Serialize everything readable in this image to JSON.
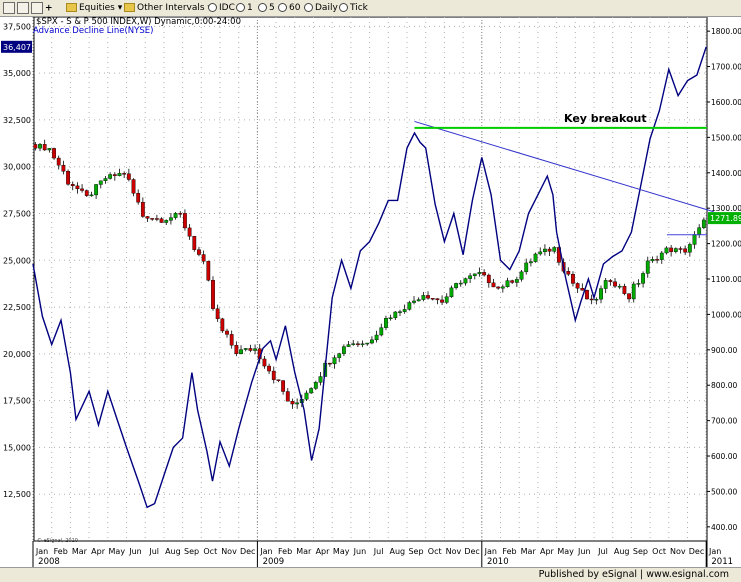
{
  "toolbar": {
    "symbol_label": "$SPX",
    "equities_label": "Equities",
    "other_intervals_label": "Other Intervals",
    "idc_label": "IDC",
    "intervals": [
      "1",
      "5",
      "60",
      "Daily",
      "Tick"
    ]
  },
  "footer": {
    "published": "Published by eSignal | www.esignal.com"
  },
  "watermark": "© eSignal, 2010",
  "colors": {
    "up_candle": "#00aa00",
    "down_candle": "#cc0000",
    "ad_line": "#000080",
    "breakout": "#00cc00",
    "trendline": "#3333cc",
    "price_tag": "#00b000"
  },
  "chart_data": {
    "type": "candlestick+line",
    "title": "$SPX - S & P 500 INDEX,W) Dynamic,0:00-24:00",
    "subtitle": "Advance Decline Line(NYSE)",
    "annotation": "Key breakout",
    "current_price_label": "1271.89",
    "ad_current_label": "36,407",
    "x_tick_labels": [
      "Jan",
      "Feb",
      "Mar",
      "Apr",
      "May",
      "Jun",
      "Jul",
      "Aug",
      "Sep",
      "Oct",
      "Nov",
      "Dec",
      "Jan",
      "Feb",
      "Mar",
      "Apr",
      "May",
      "Jun",
      "Jul",
      "Aug",
      "Sep",
      "Oct",
      "Nov",
      "Dec",
      "Jan",
      "Feb",
      "Mar",
      "Apr",
      "May",
      "Jun",
      "Jul",
      "Aug",
      "Sep",
      "Oct",
      "Nov",
      "Dec",
      "Jan"
    ],
    "year_labels": [
      {
        "label": "2008",
        "month_index": 0
      },
      {
        "label": "2009",
        "month_index": 12
      },
      {
        "label": "2010",
        "month_index": 24
      },
      {
        "label": "2011",
        "month_index": 36
      }
    ],
    "left_axis": {
      "label": "Advance Decline Line",
      "min": 10000,
      "max": 38000,
      "ticks": [
        12500,
        15000,
        17500,
        20000,
        22500,
        25000,
        27500,
        30000,
        32500,
        35000,
        37500
      ],
      "tick_labels": [
        "12,500",
        "15,000",
        "17,500",
        "20,000",
        "22,500",
        "25,000",
        "27,500",
        "30,000",
        "32,500",
        "35,000",
        "37,500"
      ]
    },
    "right_axis": {
      "label": "S&P 500",
      "min": 360,
      "max": 1840,
      "ticks": [
        400,
        500,
        600,
        700,
        800,
        900,
        1000,
        1100,
        1200,
        1300,
        1400,
        1500,
        1600,
        1700,
        1800
      ],
      "tick_labels": [
        "400.00",
        "500.00",
        "600.00",
        "700.00",
        "800.00",
        "900.00",
        "1000.00",
        "1100.00",
        "1200.00",
        "1300.00",
        "1400.00",
        "1500.00",
        "1600.00",
        "1700.00",
        "1800.00"
      ]
    },
    "spx_monthly_closes": [
      1468,
      1378,
      1330,
      1385,
      1400,
      1280,
      1267,
      1282,
      1166,
      969,
      896,
      903,
      826,
      735,
      798,
      873,
      919,
      919,
      987,
      1021,
      1057,
      1036,
      1096,
      1115,
      1074,
      1104,
      1169,
      1187,
      1089,
      1031,
      1102,
      1049,
      1141,
      1183,
      1180,
      1257,
      1272
    ],
    "ad_line_points": [
      {
        "m": 0,
        "v": 24800
      },
      {
        "m": 0.5,
        "v": 22000
      },
      {
        "m": 1,
        "v": 20500
      },
      {
        "m": 1.5,
        "v": 21800
      },
      {
        "m": 2,
        "v": 19000
      },
      {
        "m": 2.3,
        "v": 16500
      },
      {
        "m": 3,
        "v": 18000
      },
      {
        "m": 3.5,
        "v": 16200
      },
      {
        "m": 4,
        "v": 18000
      },
      {
        "m": 4.5,
        "v": 16500
      },
      {
        "m": 5,
        "v": 15000
      },
      {
        "m": 5.7,
        "v": 13000
      },
      {
        "m": 6.1,
        "v": 11800
      },
      {
        "m": 6.5,
        "v": 12000
      },
      {
        "m": 7,
        "v": 13500
      },
      {
        "m": 7.5,
        "v": 15000
      },
      {
        "m": 8,
        "v": 15500
      },
      {
        "m": 8.5,
        "v": 19000
      },
      {
        "m": 8.8,
        "v": 17000
      },
      {
        "m": 9.3,
        "v": 14800
      },
      {
        "m": 9.6,
        "v": 13200
      },
      {
        "m": 10,
        "v": 15300
      },
      {
        "m": 10.5,
        "v": 14000
      },
      {
        "m": 11,
        "v": 16000
      },
      {
        "m": 11.7,
        "v": 18500
      },
      {
        "m": 12.3,
        "v": 20300
      },
      {
        "m": 12.7,
        "v": 20700
      },
      {
        "m": 13,
        "v": 19700
      },
      {
        "m": 13.5,
        "v": 21500
      },
      {
        "m": 14,
        "v": 19000
      },
      {
        "m": 14.5,
        "v": 17000
      },
      {
        "m": 14.9,
        "v": 14300
      },
      {
        "m": 15.3,
        "v": 16000
      },
      {
        "m": 15.7,
        "v": 20000
      },
      {
        "m": 16,
        "v": 23000
      },
      {
        "m": 16.5,
        "v": 25000
      },
      {
        "m": 17,
        "v": 23500
      },
      {
        "m": 17.5,
        "v": 25500
      },
      {
        "m": 18,
        "v": 26000
      },
      {
        "m": 18.5,
        "v": 27000
      },
      {
        "m": 19,
        "v": 28200
      },
      {
        "m": 19.5,
        "v": 28200
      },
      {
        "m": 20,
        "v": 31000
      },
      {
        "m": 20.4,
        "v": 31800
      },
      {
        "m": 20.7,
        "v": 31300
      },
      {
        "m": 21,
        "v": 31000
      },
      {
        "m": 21.5,
        "v": 28000
      },
      {
        "m": 22,
        "v": 26000
      },
      {
        "m": 22.5,
        "v": 27500
      },
      {
        "m": 23,
        "v": 25300
      },
      {
        "m": 23.5,
        "v": 28200
      },
      {
        "m": 24,
        "v": 30500
      },
      {
        "m": 24.5,
        "v": 28500
      },
      {
        "m": 25,
        "v": 25000
      },
      {
        "m": 25.5,
        "v": 24500
      },
      {
        "m": 26,
        "v": 25500
      },
      {
        "m": 26.5,
        "v": 27500
      },
      {
        "m": 27,
        "v": 28500
      },
      {
        "m": 27.5,
        "v": 29500
      },
      {
        "m": 27.8,
        "v": 28500
      },
      {
        "m": 28,
        "v": 26500
      },
      {
        "m": 28.5,
        "v": 24000
      },
      {
        "m": 29,
        "v": 21800
      },
      {
        "m": 29.3,
        "v": 22800
      },
      {
        "m": 29.7,
        "v": 24000
      },
      {
        "m": 30,
        "v": 23000
      },
      {
        "m": 30.5,
        "v": 24800
      },
      {
        "m": 31,
        "v": 25200
      },
      {
        "m": 31.5,
        "v": 25500
      },
      {
        "m": 32,
        "v": 26500
      },
      {
        "m": 32.5,
        "v": 29000
      },
      {
        "m": 33,
        "v": 31500
      },
      {
        "m": 33.5,
        "v": 33000
      },
      {
        "m": 34,
        "v": 35200
      },
      {
        "m": 34.5,
        "v": 33800
      },
      {
        "m": 35,
        "v": 34600
      },
      {
        "m": 35.5,
        "v": 34900
      },
      {
        "m": 36,
        "v": 36407
      }
    ],
    "trendline": {
      "from": {
        "m": 20.4,
        "spx": 1545
      },
      "to": {
        "m": 36.4,
        "spx": 1290
      }
    },
    "breakout_level_spx": 1527,
    "resistance_level_spx": 1225
  }
}
